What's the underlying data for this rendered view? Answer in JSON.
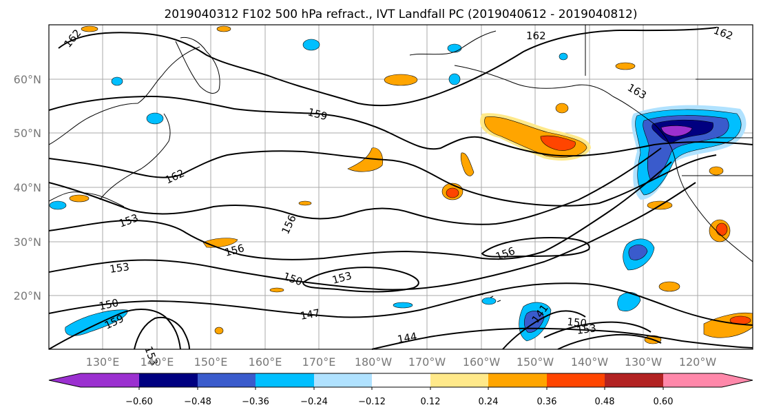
{
  "title": "2019040312 F102 500 hPa refract., IVT Landfall PC (2019040612 - 2019040812)",
  "latitude_labels": [
    "60°N",
    "50°N",
    "40°N",
    "30°N",
    "20°N"
  ],
  "longitude_labels": [
    "130°E",
    "140°E",
    "150°E",
    "160°E",
    "170°E",
    "180°W",
    "170°W",
    "160°W",
    "150°W",
    "140°W",
    "130°W",
    "120°W"
  ],
  "contour_labels": [
    "162",
    "162",
    "159",
    "162",
    "163",
    "153",
    "156",
    "156",
    "153",
    "150",
    "153",
    "156",
    "150",
    "147",
    "159",
    "153",
    "144",
    "141",
    "150",
    "153",
    "162"
  ],
  "colorbar": {
    "tick_labels": [
      "−0.60",
      "−0.48",
      "−0.36",
      "−0.24",
      "−0.12",
      "0.12",
      "0.24",
      "0.36",
      "0.48",
      "0.60"
    ],
    "colors": [
      "#9b30d0",
      "#000080",
      "#3a5bcc",
      "#00bfff",
      "#b0e2ff",
      "#ffffff",
      "#ffe98a",
      "#ffa500",
      "#ff4500",
      "#b22222",
      "#ff88aa"
    ]
  }
}
